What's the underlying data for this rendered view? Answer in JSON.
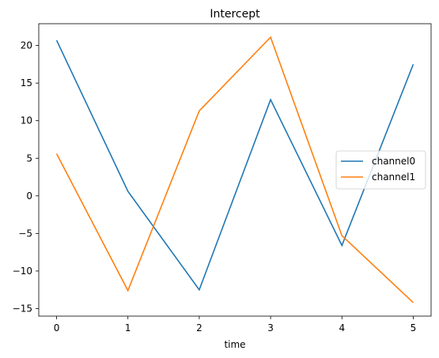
{
  "chart_data": {
    "type": "line",
    "title": "Intercept",
    "xlabel": "time",
    "ylabel": "",
    "x": [
      0,
      1,
      2,
      3,
      4,
      5
    ],
    "xticks": [
      0,
      1,
      2,
      3,
      4,
      5
    ],
    "yticks": [
      -15,
      -10,
      -5,
      0,
      5,
      10,
      15,
      20
    ],
    "xlim": [
      -0.25,
      5.25
    ],
    "ylim": [
      -16.0,
      22.9
    ],
    "grid": false,
    "legend_position": "center-right",
    "series": [
      {
        "name": "channel0",
        "color": "#1f77b4",
        "values": [
          20.7,
          0.6,
          -12.5,
          12.8,
          -6.6,
          17.5
        ]
      },
      {
        "name": "channel1",
        "color": "#ff7f0e",
        "values": [
          5.6,
          -12.6,
          11.3,
          21.1,
          -5.3,
          -14.2
        ]
      }
    ]
  }
}
